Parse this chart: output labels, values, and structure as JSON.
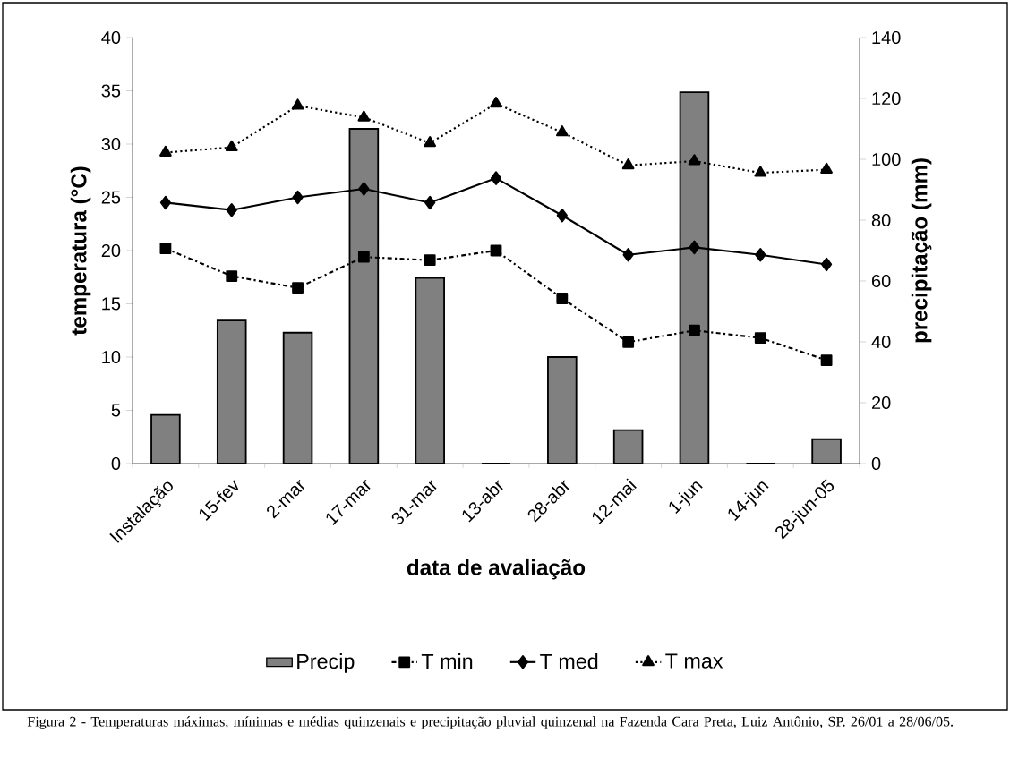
{
  "chart_data": {
    "type": "line",
    "xlabel": "data de avaliação",
    "ylabel": "temperatura (°C)",
    "y2label": "precipitação (mm)",
    "categories": [
      "Instalação",
      "15-fev",
      "2-mar",
      "17-mar",
      "31-mar",
      "13-abr",
      "28-abr",
      "12-mai",
      "1-jun",
      "14-jun",
      "28-jun-05"
    ],
    "series": [
      {
        "name": "Precip",
        "type": "bar",
        "axis": "y2",
        "color": "#808080",
        "values": [
          16,
          47,
          43,
          110,
          61,
          0,
          35,
          11,
          122,
          0,
          8
        ]
      },
      {
        "name": "T min",
        "color": "#000000",
        "marker": "square",
        "line_style": "dashdot",
        "values": [
          20.2,
          17.6,
          16.5,
          19.4,
          19.1,
          20.0,
          15.5,
          11.4,
          12.5,
          11.8,
          9.7
        ]
      },
      {
        "name": "T med",
        "color": "#000000",
        "marker": "diamond",
        "line_style": "solid",
        "values": [
          24.5,
          23.8,
          25.0,
          25.8,
          24.5,
          26.8,
          23.3,
          19.6,
          20.3,
          19.6,
          18.7
        ]
      },
      {
        "name": "T max",
        "color": "#000000",
        "marker": "triangle",
        "line_style": "dotted",
        "values": [
          29.2,
          29.7,
          33.6,
          32.5,
          30.1,
          33.8,
          31.1,
          28.0,
          28.4,
          27.3,
          27.6
        ]
      }
    ],
    "ylim": [
      0,
      40
    ],
    "yticks": [
      0,
      5,
      10,
      15,
      20,
      25,
      30,
      35,
      40
    ],
    "y2lim": [
      0,
      140
    ],
    "y2ticks": [
      0,
      20,
      40,
      60,
      80,
      100,
      120,
      140
    ],
    "grid": false,
    "legend": "bottom",
    "annotations": [
      "Figura 2 - Temperaturas máximas, mínimas e médias quinzenais e precipitação pluvial quinzenal na Fazenda Cara Preta, Luiz Antônio, SP. 26/01 a 28/06/05."
    ]
  }
}
